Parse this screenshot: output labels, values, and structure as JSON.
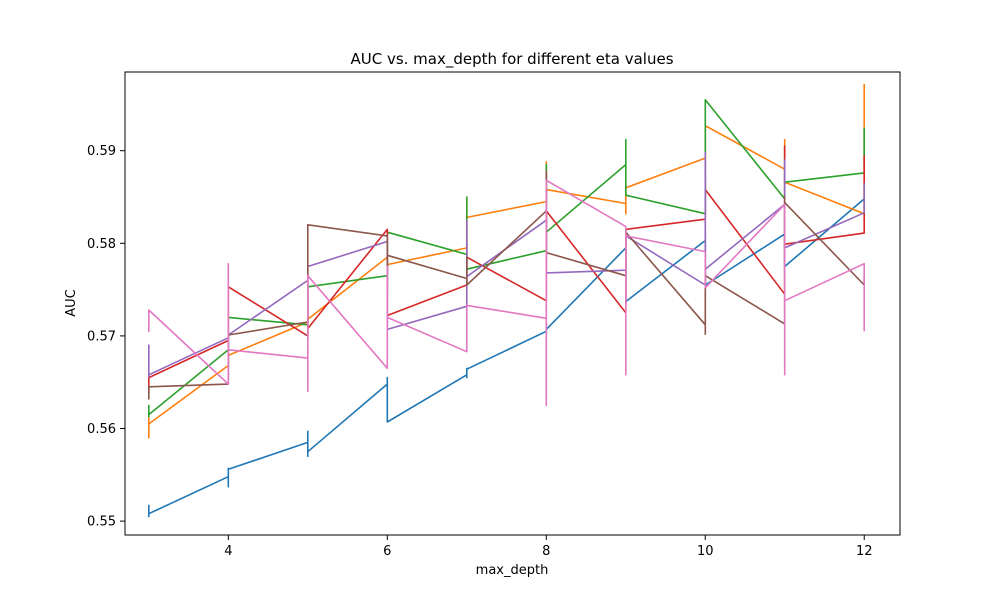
{
  "chart_data": {
    "type": "line",
    "title": "AUC vs. max_depth for different eta values",
    "xlabel": "max_depth",
    "ylabel": "AUC",
    "xlim": [
      2.7,
      12.45
    ],
    "ylim": [
      0.5485,
      0.5985
    ],
    "xticks": [
      4,
      6,
      8,
      10,
      12
    ],
    "yticks": [
      0.55,
      0.56,
      0.57,
      0.58,
      0.59
    ],
    "grid": false,
    "legend": "none",
    "series": [
      {
        "color": "#1f77b4",
        "points": [
          [
            3,
            0.5507
          ],
          [
            3,
            0.5517
          ],
          [
            3,
            0.5505
          ],
          [
            3,
            0.5508
          ],
          [
            4,
            0.5548
          ],
          [
            4,
            0.5537
          ],
          [
            4,
            0.5557
          ],
          [
            4,
            0.5556
          ],
          [
            5,
            0.5585
          ],
          [
            5,
            0.557
          ],
          [
            5,
            0.5597
          ],
          [
            5,
            0.5575
          ],
          [
            6,
            0.5648
          ],
          [
            6,
            0.5655
          ],
          [
            6,
            0.5635
          ],
          [
            6,
            0.5607
          ],
          [
            7,
            0.5658
          ],
          [
            7,
            0.5665
          ],
          [
            7,
            0.5655
          ],
          [
            7,
            0.5664
          ],
          [
            8,
            0.5705
          ],
          [
            8,
            0.5715
          ],
          [
            8,
            0.57
          ],
          [
            8,
            0.5707
          ],
          [
            9,
            0.5795
          ],
          [
            9,
            0.5805
          ],
          [
            9,
            0.5735
          ],
          [
            9,
            0.5737
          ],
          [
            10,
            0.5803
          ],
          [
            10,
            0.581
          ],
          [
            10,
            0.575
          ],
          [
            10,
            0.5755
          ],
          [
            11,
            0.581
          ],
          [
            11,
            0.5815
          ],
          [
            11,
            0.5772
          ],
          [
            11,
            0.5775
          ],
          [
            12,
            0.5848
          ]
        ]
      },
      {
        "color": "#ff7f0e",
        "points": [
          [
            3,
            0.5612
          ],
          [
            3,
            0.559
          ],
          [
            3,
            0.5605
          ],
          [
            4,
            0.5668
          ],
          [
            4,
            0.5665
          ],
          [
            4,
            0.5679
          ],
          [
            5,
            0.5715
          ],
          [
            5,
            0.5712
          ],
          [
            5,
            0.5718
          ],
          [
            6,
            0.5785
          ],
          [
            6,
            0.5775
          ],
          [
            6,
            0.5777
          ],
          [
            7,
            0.5795
          ],
          [
            7,
            0.585
          ],
          [
            7,
            0.5828
          ],
          [
            8,
            0.5845
          ],
          [
            8,
            0.5888
          ],
          [
            8,
            0.5858
          ],
          [
            9,
            0.5843
          ],
          [
            9,
            0.5832
          ],
          [
            9,
            0.586
          ],
          [
            10,
            0.5892
          ],
          [
            10,
            0.5925
          ],
          [
            10,
            0.5927
          ],
          [
            11,
            0.588
          ],
          [
            11,
            0.5912
          ],
          [
            11,
            0.5866
          ],
          [
            12,
            0.5832
          ],
          [
            12,
            0.5972
          ]
        ]
      },
      {
        "color": "#2ca02c",
        "points": [
          [
            3,
            0.5612
          ],
          [
            3,
            0.5625
          ],
          [
            3,
            0.5615
          ],
          [
            4,
            0.5685
          ],
          [
            4,
            0.5695
          ],
          [
            4,
            0.572
          ],
          [
            5,
            0.5712
          ],
          [
            5,
            0.5695
          ],
          [
            5,
            0.5753
          ],
          [
            6,
            0.5765
          ],
          [
            6,
            0.5805
          ],
          [
            6,
            0.5812
          ],
          [
            7,
            0.5788
          ],
          [
            7,
            0.585
          ],
          [
            7,
            0.5772
          ],
          [
            8,
            0.5792
          ],
          [
            8,
            0.5885
          ],
          [
            8,
            0.5812
          ],
          [
            9,
            0.5885
          ],
          [
            9,
            0.5912
          ],
          [
            9,
            0.5852
          ],
          [
            10,
            0.5832
          ],
          [
            10,
            0.5915
          ],
          [
            10,
            0.5955
          ],
          [
            11,
            0.5848
          ],
          [
            11,
            0.5905
          ],
          [
            11,
            0.5866
          ],
          [
            12,
            0.5876
          ],
          [
            12,
            0.5925
          ]
        ]
      },
      {
        "color": "#d62728",
        "points": [
          [
            3,
            0.5657
          ],
          [
            3,
            0.5638
          ],
          [
            3,
            0.5655
          ],
          [
            4,
            0.5695
          ],
          [
            4,
            0.5745
          ],
          [
            4,
            0.5753
          ],
          [
            5,
            0.57
          ],
          [
            5,
            0.5745
          ],
          [
            5,
            0.5708
          ],
          [
            6,
            0.5815
          ],
          [
            6,
            0.579
          ],
          [
            6,
            0.5722
          ],
          [
            7,
            0.5755
          ],
          [
            7,
            0.58
          ],
          [
            7,
            0.5785
          ],
          [
            8,
            0.5738
          ],
          [
            8,
            0.5825
          ],
          [
            8,
            0.5835
          ],
          [
            9,
            0.5725
          ],
          [
            9,
            0.5785
          ],
          [
            9,
            0.5815
          ],
          [
            10,
            0.5826
          ],
          [
            10,
            0.5872
          ],
          [
            10,
            0.5858
          ],
          [
            11,
            0.5745
          ],
          [
            11,
            0.5905
          ],
          [
            11,
            0.5799
          ],
          [
            12,
            0.5811
          ],
          [
            12,
            0.5895
          ]
        ]
      },
      {
        "color": "#9467bd",
        "points": [
          [
            3,
            0.5655
          ],
          [
            3,
            0.569
          ],
          [
            3,
            0.5658
          ],
          [
            4,
            0.5698
          ],
          [
            4,
            0.5655
          ],
          [
            4,
            0.5701
          ],
          [
            5,
            0.576
          ],
          [
            5,
            0.5745
          ],
          [
            5,
            0.5775
          ],
          [
            6,
            0.5802
          ],
          [
            6,
            0.5765
          ],
          [
            6,
            0.5707
          ],
          [
            7,
            0.5732
          ],
          [
            7,
            0.5825
          ],
          [
            7,
            0.5764
          ],
          [
            8,
            0.5825
          ],
          [
            8,
            0.5875
          ],
          [
            8,
            0.5768
          ],
          [
            9,
            0.5771
          ],
          [
            9,
            0.5735
          ],
          [
            9,
            0.5808
          ],
          [
            10,
            0.5755
          ],
          [
            10,
            0.5898
          ],
          [
            10,
            0.5772
          ],
          [
            11,
            0.5842
          ],
          [
            11,
            0.589
          ],
          [
            11,
            0.5795
          ],
          [
            12,
            0.5833
          ],
          [
            12,
            0.5865
          ]
        ]
      },
      {
        "color": "#8c564b",
        "points": [
          [
            3,
            0.5645
          ],
          [
            3,
            0.5632
          ],
          [
            3,
            0.5645
          ],
          [
            4,
            0.5648
          ],
          [
            4,
            0.5672
          ],
          [
            4,
            0.5701
          ],
          [
            5,
            0.5715
          ],
          [
            5,
            0.5765
          ],
          [
            5,
            0.582
          ],
          [
            6,
            0.5808
          ],
          [
            6,
            0.5748
          ],
          [
            6,
            0.5787
          ],
          [
            7,
            0.5762
          ],
          [
            7,
            0.5785
          ],
          [
            7,
            0.5755
          ],
          [
            8,
            0.5835
          ],
          [
            8,
            0.5878
          ],
          [
            8,
            0.579
          ],
          [
            9,
            0.5765
          ],
          [
            9,
            0.5802
          ],
          [
            9,
            0.5812
          ],
          [
            10,
            0.5712
          ],
          [
            10,
            0.5702
          ],
          [
            10,
            0.5765
          ],
          [
            11,
            0.5713
          ],
          [
            11,
            0.585
          ],
          [
            11,
            0.5844
          ],
          [
            12,
            0.5755
          ],
          [
            12,
            0.5765
          ]
        ]
      },
      {
        "color": "#e377c2",
        "points": [
          [
            3,
            0.5728
          ],
          [
            3,
            0.5705
          ],
          [
            3,
            0.5728
          ],
          [
            4,
            0.5648
          ],
          [
            4,
            0.5778
          ],
          [
            4,
            0.5685
          ],
          [
            5,
            0.5676
          ],
          [
            5,
            0.564
          ],
          [
            5,
            0.5765
          ],
          [
            6,
            0.5665
          ],
          [
            6,
            0.5775
          ],
          [
            6,
            0.572
          ],
          [
            7,
            0.5683
          ],
          [
            7,
            0.5702
          ],
          [
            7,
            0.5733
          ],
          [
            8,
            0.5719
          ],
          [
            8,
            0.5625
          ],
          [
            8,
            0.5868
          ],
          [
            9,
            0.5818
          ],
          [
            9,
            0.5658
          ],
          [
            9,
            0.5808
          ],
          [
            10,
            0.5791
          ],
          [
            10,
            0.5768
          ],
          [
            10,
            0.5752
          ],
          [
            11,
            0.5842
          ],
          [
            11,
            0.5658
          ],
          [
            11,
            0.5738
          ],
          [
            12,
            0.5778
          ],
          [
            12,
            0.5705
          ]
        ]
      }
    ]
  }
}
